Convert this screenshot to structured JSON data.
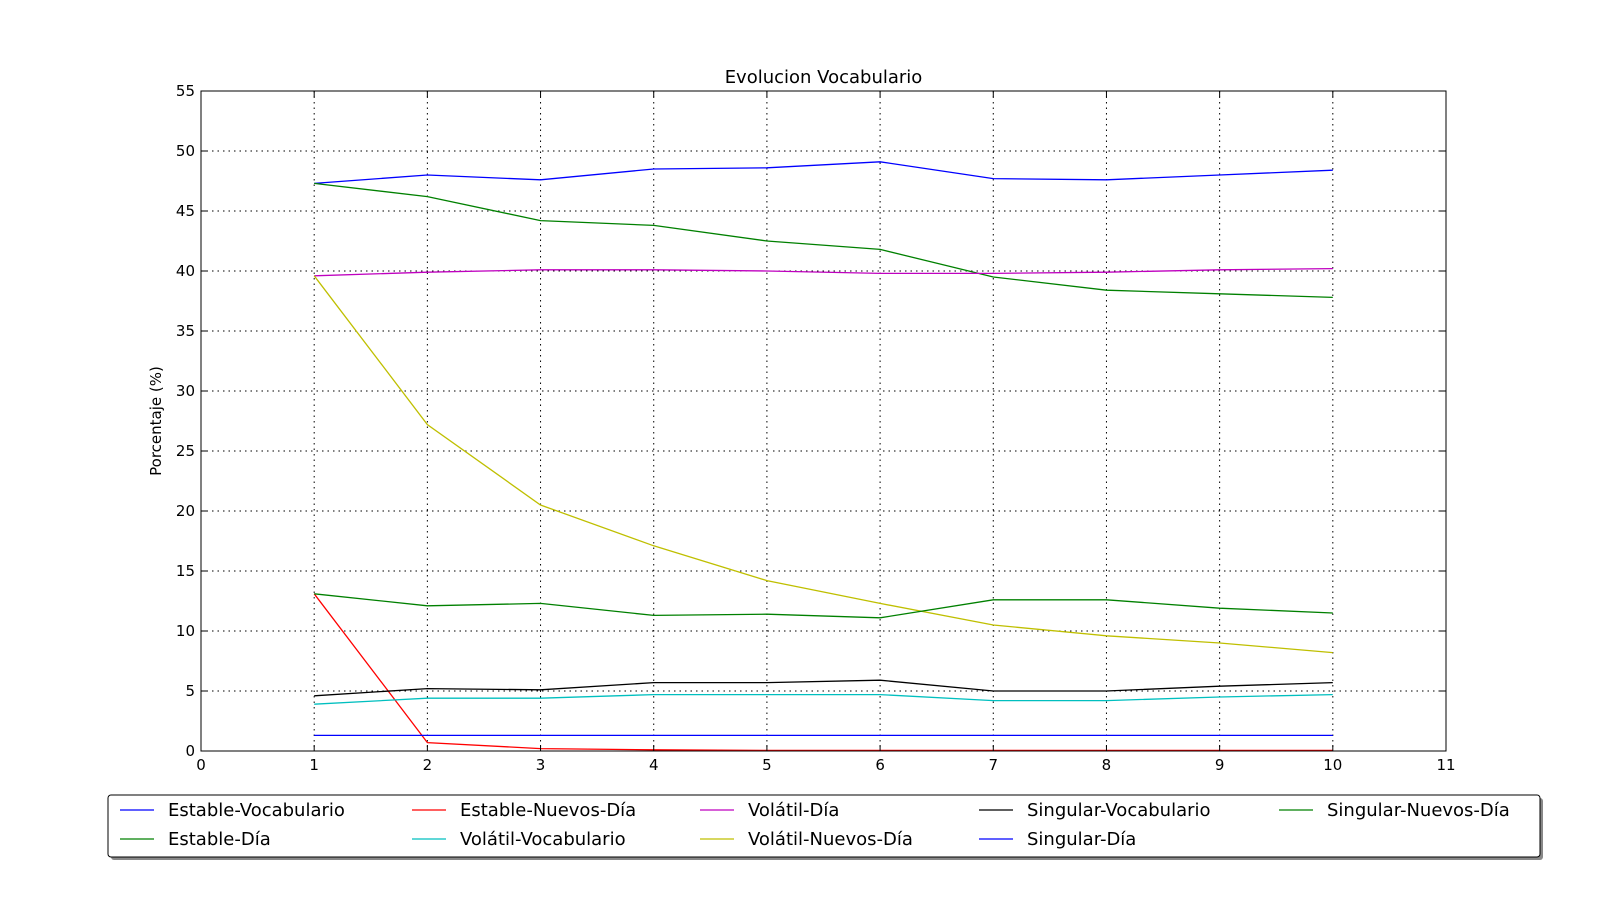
{
  "chart_data": {
    "type": "line",
    "title": "Evolucion Vocabulario",
    "xlabel": "",
    "ylabel": "Porcentaje (%)",
    "xlim": [
      0,
      11
    ],
    "ylim": [
      0,
      55
    ],
    "xticks": [
      0,
      1,
      2,
      3,
      4,
      5,
      6,
      7,
      8,
      9,
      10,
      11
    ],
    "yticks": [
      0,
      5,
      10,
      15,
      20,
      25,
      30,
      35,
      40,
      45,
      50,
      55
    ],
    "grid": true,
    "grid_style": "dotted",
    "legend_position": "bottom",
    "legend_columns": 5,
    "x": [
      1,
      2,
      3,
      4,
      5,
      6,
      7,
      8,
      9,
      10
    ],
    "series": [
      {
        "name": "Estable-Vocabulario",
        "color": "#0000ff",
        "values": [
          47.3,
          48.0,
          47.6,
          48.5,
          48.6,
          49.1,
          47.7,
          47.6,
          48.0,
          48.4
        ]
      },
      {
        "name": "Estable-Día",
        "color": "#008000",
        "values": [
          47.3,
          46.2,
          44.2,
          43.8,
          42.5,
          41.8,
          39.5,
          38.4,
          38.1,
          37.8
        ]
      },
      {
        "name": "Estable-Nuevos-Día",
        "color": "#ff0000",
        "values": [
          13.1,
          0.7,
          0.2,
          0.1,
          0.05,
          0.05,
          0.05,
          0.05,
          0.05,
          0.05
        ]
      },
      {
        "name": "Volátil-Vocabulario",
        "color": "#00bfbf",
        "values": [
          3.9,
          4.4,
          4.4,
          4.7,
          4.7,
          4.7,
          4.2,
          4.2,
          4.5,
          4.7
        ]
      },
      {
        "name": "Volátil-Día",
        "color": "#bf00bf",
        "values": [
          39.6,
          39.9,
          40.1,
          40.1,
          40.0,
          39.8,
          39.8,
          39.9,
          40.1,
          40.2
        ]
      },
      {
        "name": "Volátil-Nuevos-Día",
        "color": "#bfbf00",
        "values": [
          39.6,
          27.2,
          20.5,
          17.1,
          14.2,
          12.3,
          10.5,
          9.6,
          9.0,
          8.2
        ]
      },
      {
        "name": "Singular-Vocabulario",
        "color": "#000000",
        "values": [
          4.6,
          5.2,
          5.1,
          5.7,
          5.7,
          5.9,
          5.0,
          5.0,
          5.4,
          5.7
        ]
      },
      {
        "name": "Singular-Día",
        "color": "#0000ff",
        "values": [
          1.3,
          1.3,
          1.3,
          1.3,
          1.3,
          1.3,
          1.3,
          1.3,
          1.3,
          1.3
        ]
      },
      {
        "name": "Singular-Nuevos-Día",
        "color": "#008000",
        "values": [
          13.1,
          12.1,
          12.3,
          11.3,
          11.4,
          11.1,
          12.6,
          12.6,
          11.9,
          11.5
        ]
      }
    ],
    "legend_order": [
      0,
      1,
      2,
      3,
      4,
      5,
      6,
      7,
      8
    ]
  }
}
